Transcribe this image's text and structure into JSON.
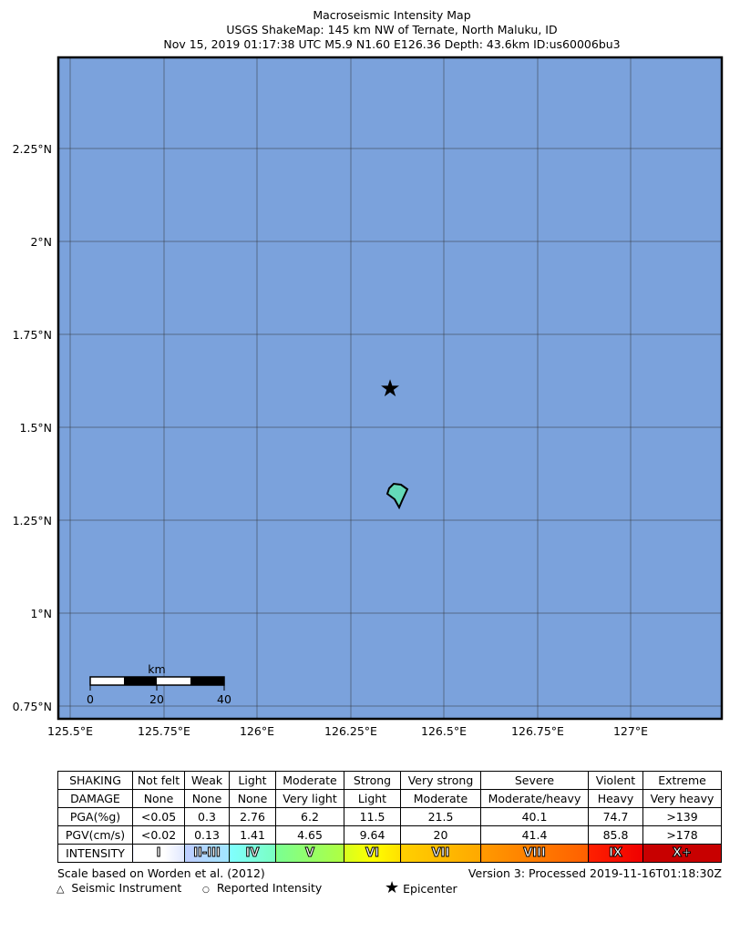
{
  "title": {
    "line1": "Macroseismic Intensity Map",
    "line2": "USGS ShakeMap: 145 km NW of Ternate, North Maluku, ID",
    "line3": "Nov 15, 2019 01:17:38 UTC M5.9 N1.60 E126.36 Depth: 43.6km ID:us60006bu3"
  },
  "map": {
    "water_color": "#7ba2dc",
    "land_color": "#64d9b8",
    "lon_ticks": [
      "125.5°E",
      "125.75°E",
      "126°E",
      "126.25°E",
      "126.5°E",
      "126.75°E",
      "127°E"
    ],
    "lat_ticks": [
      "2.25°N",
      "2°N",
      "1.75°N",
      "1.5°N",
      "1.25°N",
      "1°N",
      "0.75°N"
    ],
    "epicenter": {
      "lat": 1.6,
      "lon": 126.36
    },
    "scale_bar": {
      "unit": "km",
      "labels": [
        "0",
        "20",
        "40"
      ]
    }
  },
  "legend": {
    "rows": [
      {
        "head": "SHAKING",
        "cells": [
          "Not felt",
          "Weak",
          "Light",
          "Moderate",
          "Strong",
          "Very strong",
          "Severe",
          "Violent",
          "Extreme"
        ]
      },
      {
        "head": "DAMAGE",
        "cells": [
          "None",
          "None",
          "None",
          "Very light",
          "Light",
          "Moderate",
          "Moderate/heavy",
          "Heavy",
          "Very heavy"
        ]
      },
      {
        "head": "PGA(%g)",
        "cells": [
          "<0.05",
          "0.3",
          "2.76",
          "6.2",
          "11.5",
          "21.5",
          "40.1",
          "74.7",
          ">139"
        ]
      },
      {
        "head": "PGV(cm/s)",
        "cells": [
          "<0.02",
          "0.13",
          "1.41",
          "4.65",
          "9.64",
          "20",
          "41.4",
          "85.8",
          ">178"
        ]
      }
    ],
    "intensity": {
      "head": "INTENSITY",
      "cells": [
        "I",
        "II-III",
        "IV",
        "V",
        "VI",
        "VII",
        "VIII",
        "IX",
        "X+"
      ],
      "colors": [
        "linear-gradient(90deg,#fff 60%,#dfe6ff)",
        "linear-gradient(90deg,#bfccff,#a0e6ff)",
        "linear-gradient(90deg,#80ffff,#7affc0)",
        "linear-gradient(90deg,#7aff93,#b0ff40)",
        "linear-gradient(90deg,#d6ff20,#ffff00,#ffe000)",
        "linear-gradient(90deg,#ffd000,#ffa800)",
        "linear-gradient(90deg,#ff9a00,#ff5f00)",
        "linear-gradient(90deg,#ff2000,#f00000)",
        "#c80000"
      ]
    },
    "scale_note": "Scale based on Worden et al. (2012)",
    "version": "Version 3: Processed 2019-11-16T01:18:30Z",
    "symbols": {
      "instrument": "Seismic Instrument",
      "reported": "Reported Intensity",
      "epicenter": "Epicenter"
    }
  }
}
